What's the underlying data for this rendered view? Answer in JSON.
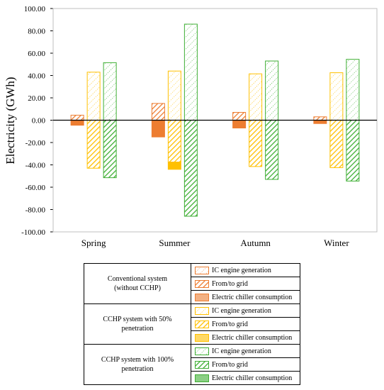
{
  "chart_data": {
    "type": "bar",
    "ylabel": "Electricity (GWh)",
    "ylim": [
      -100,
      100
    ],
    "ytick_step": 20,
    "yticks": [
      "100.00",
      "80.00",
      "60.00",
      "40.00",
      "20.00",
      "0.00",
      "-20.00",
      "-40.00",
      "-60.00",
      "-80.00",
      "-100.00"
    ],
    "grid": false,
    "categories": [
      "Spring",
      "Summer",
      "Autumn",
      "Winter"
    ],
    "series": [
      {
        "system": 0,
        "component": "IC engine generation",
        "color": "#ED7D31",
        "pattern": "dotted",
        "values": [
          0,
          0,
          0,
          0
        ]
      },
      {
        "system": 0,
        "component": "From/to grid",
        "color": "#ED7D31",
        "pattern": "diagonal",
        "values": [
          4.5,
          15,
          7,
          3
        ]
      },
      {
        "system": 0,
        "component": "Electric chiller consumption",
        "color": "#ED7D31",
        "pattern": "solid",
        "values": [
          -4.5,
          -15,
          -7,
          -3
        ]
      },
      {
        "system": 1,
        "component": "IC engine generation",
        "color": "#FFC000",
        "pattern": "dotted",
        "values": [
          43,
          44,
          41.5,
          42.5
        ]
      },
      {
        "system": 1,
        "component": "From/to grid",
        "color": "#FFC000",
        "pattern": "diagonal",
        "values": [
          -43,
          -37.5,
          -41.5,
          -42.5
        ]
      },
      {
        "system": 1,
        "component": "Electric chiller consumption",
        "color": "#FFC000",
        "pattern": "solid",
        "values": [
          0,
          -6.5,
          0,
          0
        ]
      },
      {
        "system": 2,
        "component": "IC engine generation",
        "color": "#3FAF34",
        "pattern": "dotted",
        "values": [
          51.5,
          86,
          53,
          54.5
        ]
      },
      {
        "system": 2,
        "component": "From/to grid",
        "color": "#3FAF34",
        "pattern": "diagonal",
        "values": [
          -51.5,
          -86,
          -53,
          -54.5
        ]
      },
      {
        "system": 2,
        "component": "Electric chiller consumption",
        "color": "#3FAF34",
        "pattern": "solid",
        "values": [
          0,
          0,
          0,
          0
        ]
      }
    ],
    "legend": {
      "placement": "bottom",
      "groups": [
        {
          "label_lines": [
            "Conventional system",
            "(without CCHP)"
          ],
          "color": "#ED7D31",
          "entries": [
            "IC engine generation",
            "From/to grid",
            "Electric chiller consumption"
          ]
        },
        {
          "label_lines": [
            "CCHP system with 50%",
            "penetration"
          ],
          "color": "#FFC000",
          "entries": [
            "IC engine generation",
            "From/to grid",
            "Electric chiller consumption"
          ]
        },
        {
          "label_lines": [
            "CCHP system with 100%",
            "penetration"
          ],
          "color": "#3FAF34",
          "entries": [
            "IC engine generation",
            "From/to grid",
            "Electric chiller consumption"
          ]
        }
      ]
    }
  }
}
